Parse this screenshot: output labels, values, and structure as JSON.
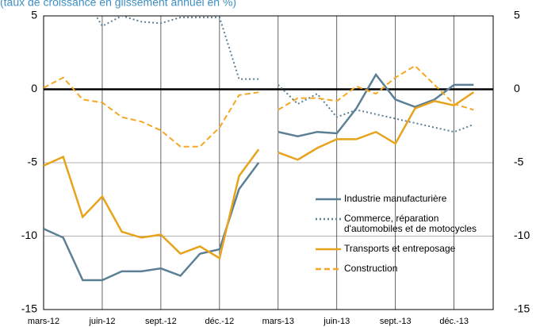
{
  "chart_data": {
    "type": "line",
    "subtitle": "(taux de croissance en glissement annuel en %)",
    "categories": [
      "mars-12",
      null,
      null,
      "juin-12",
      null,
      null,
      "sept.-12",
      null,
      null,
      "déc.-12",
      null,
      null,
      "mars-13",
      null,
      null,
      "juin-13",
      null,
      null,
      "sept.-13",
      null,
      null,
      "déc.-13",
      null,
      null
    ],
    "line_breaks_after": [
      11
    ],
    "ylim": [
      -15,
      5
    ],
    "yticks": [
      -15,
      -10,
      -5,
      0,
      5
    ],
    "grid": true,
    "series": [
      {
        "name": "Industrie manufacturière",
        "color": "#5b7f95",
        "dash": "solid",
        "values": [
          -9.5,
          -10.1,
          -13.0,
          -13.0,
          -12.4,
          -12.4,
          -12.2,
          -12.7,
          -11.2,
          -10.9,
          -6.8,
          -5.0,
          -2.9,
          -3.2,
          -2.9,
          -3.0,
          -1.3,
          1.0,
          -0.7,
          -1.2,
          -0.7,
          0.3,
          0.3,
          null
        ]
      },
      {
        "name": "Commerce, réparation d'automobiles et de motocycles",
        "color": "#5b7f95",
        "dash": "dotted",
        "values": [
          null,
          null,
          6.5,
          4.3,
          5.0,
          4.6,
          4.5,
          4.9,
          4.9,
          4.9,
          0.7,
          0.7,
          0.3,
          -1.0,
          -0.3,
          -1.9,
          -1.4,
          -1.7,
          -2.0,
          -2.3,
          -2.6,
          -2.9,
          -2.4,
          null
        ]
      },
      {
        "name": "Transports et entreposage",
        "color": "#e8a31c",
        "dash": "solid",
        "values": [
          -5.2,
          -4.6,
          -8.7,
          -7.3,
          -9.7,
          -10.1,
          -9.9,
          -11.2,
          -10.7,
          -11.5,
          -5.9,
          -4.1,
          -4.3,
          -4.8,
          -4.0,
          -3.4,
          -3.4,
          -2.9,
          -3.7,
          -1.3,
          -0.8,
          -1.1,
          -0.2,
          null
        ]
      },
      {
        "name": "Construction",
        "color": "#f5a623",
        "dash": "dashed",
        "values": [
          0.1,
          0.8,
          -0.7,
          -0.9,
          -1.9,
          -2.2,
          -2.8,
          -3.9,
          -3.9,
          -2.6,
          -0.4,
          -0.2,
          -1.4,
          -0.6,
          -0.6,
          -0.8,
          0.2,
          -0.3,
          0.8,
          1.6,
          0.3,
          -1.0,
          -1.4,
          null
        ]
      }
    ]
  }
}
